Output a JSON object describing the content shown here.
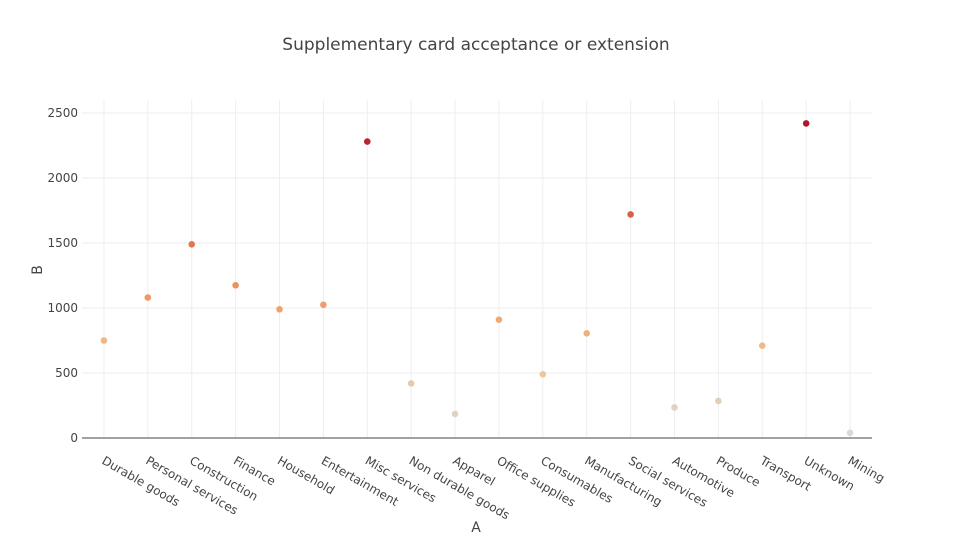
{
  "chart_data": {
    "type": "scatter",
    "title": "Supplementary card acceptance or extension",
    "xlabel": "A",
    "ylabel": "B",
    "ylim": [
      0,
      2600
    ],
    "yticks": [
      0,
      500,
      1000,
      1500,
      2000,
      2500
    ],
    "grid": true,
    "legend": "none",
    "color_scale": [
      "#d9d9d9",
      "#f2c18a",
      "#eb8d5a",
      "#d35844",
      "#b0172b"
    ],
    "categories": [
      "Durable goods",
      "Personal services",
      "Construction",
      "Finance",
      "Household",
      "Entertainment",
      "Misc services",
      "Non durable goods",
      "Apparel",
      "Office supplies",
      "Consumables",
      "Manufacturing",
      "Social services",
      "Automotive",
      "Produce",
      "Transport",
      "Unknown",
      "Mining"
    ],
    "values": [
      750,
      1080,
      1490,
      1175,
      990,
      1025,
      2280,
      420,
      185,
      910,
      490,
      805,
      1720,
      235,
      285,
      710,
      2420,
      40
    ]
  }
}
